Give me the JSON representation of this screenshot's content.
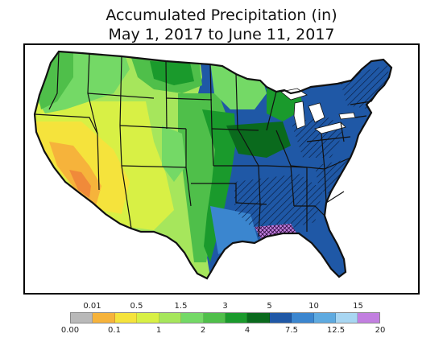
{
  "title": "Accumulated Precipitation (in)",
  "subtitle": "May 1, 2017 to June 11, 2017",
  "legend": {
    "bins": [
      {
        "color": "#b9b9b9"
      },
      {
        "color": "#f6b33b"
      },
      {
        "color": "#f5e33c"
      },
      {
        "color": "#d8f045"
      },
      {
        "color": "#a6e65c"
      },
      {
        "color": "#74d966"
      },
      {
        "color": "#4fbf4a"
      },
      {
        "color": "#1a9a2c"
      },
      {
        "color": "#0a6a1d"
      },
      {
        "color": "#1f58a6"
      },
      {
        "color": "#3b86cf"
      },
      {
        "color": "#5eaae0"
      },
      {
        "color": "#a8d6f2"
      },
      {
        "color": "#c27fe0"
      }
    ],
    "top_labels": [
      "0.01",
      "0.5",
      "1.5",
      "3",
      "5",
      "10",
      "15"
    ],
    "bottom_labels": [
      "0.00",
      "0.1",
      "1",
      "2",
      "4",
      "7.5",
      "12.5",
      "20"
    ]
  },
  "colors": {
    "dry_west": "#f5e33c",
    "very_dry": "#f6b33b",
    "driest": "#f08a3a",
    "light_green": "#a6e65c",
    "mid_green": "#4fbf4a",
    "dark_green": "#1a9a2c",
    "deep_green": "#0a6a1d",
    "blue": "#1f58a6",
    "light_blue": "#3b86cf",
    "purple": "#c27fe0",
    "lakes": "#ffffff",
    "borders": "#111111"
  }
}
